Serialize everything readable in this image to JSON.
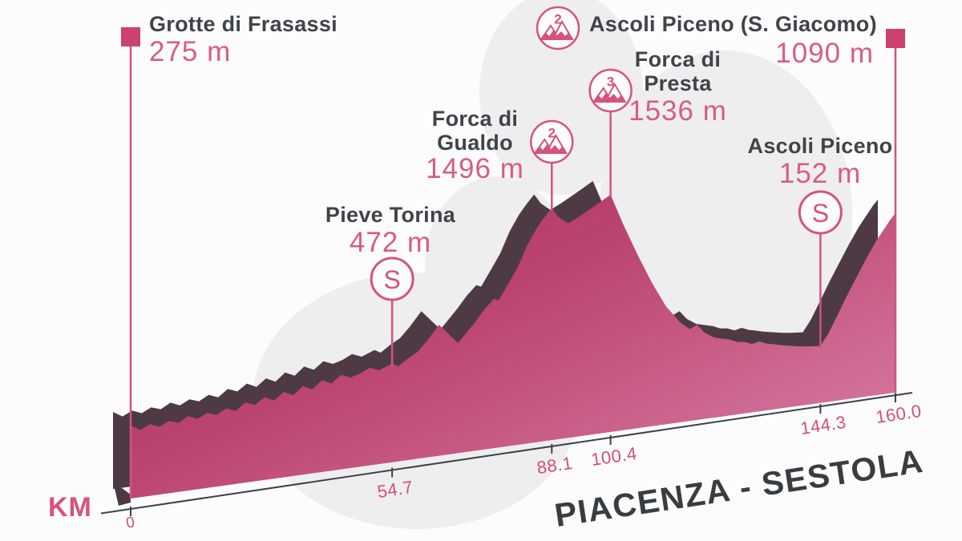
{
  "title": "PIACENZA - SESTOLA",
  "axis": {
    "label": "KM",
    "ticks": [
      {
        "label": "0",
        "km": 0
      },
      {
        "label": "54.7",
        "km": 54.7
      },
      {
        "label": "88.1",
        "km": 88.1
      },
      {
        "label": "100.4",
        "km": 100.4
      },
      {
        "label": "144.3",
        "km": 144.3
      },
      {
        "label": "160.0",
        "km": 160
      }
    ]
  },
  "sprint_symbol": "S",
  "waypoints": [
    {
      "id": "grotte",
      "name": "Grotte di Frasassi",
      "elevation": "275 m",
      "km": 0,
      "type": "start"
    },
    {
      "id": "pieve",
      "name": "Pieve Torina",
      "elevation": "472 m",
      "km": 54.7,
      "type": "sprint"
    },
    {
      "id": "gualdo",
      "name": "Forca di Gualdo",
      "elevation": "1496 m",
      "km": 88.1,
      "type": "climb",
      "category": "2"
    },
    {
      "id": "presta",
      "name": "Forca di Presta",
      "elevation": "1536 m",
      "km": 100.4,
      "type": "climb",
      "category": "3"
    },
    {
      "id": "ascoli",
      "name": "Ascoli Piceno",
      "elevation": "152 m",
      "km": 144.3,
      "type": "sprint"
    },
    {
      "id": "giacomo",
      "name": "Ascoli Piceno (S. Giacomo)",
      "elevation": "1090 m",
      "km": 160,
      "type": "finish",
      "category": "2"
    }
  ],
  "colors": {
    "accent_pink": "#d6537d",
    "elevation_pink": "#d75c85",
    "tick_pink": "#d14f7a",
    "line_pink": "#d4537c",
    "marker_pink": "#cc4170",
    "fill_start": "#a92d59",
    "fill_mid": "#bc4470",
    "fill_end": "#d1719a",
    "ridge_dark": "#4d3a45",
    "text_dark": "#3f444a",
    "axis_dark": "#3c4247",
    "blob_gray": "#efeeef",
    "background": "#fcfcfc"
  },
  "chart_data": {
    "type": "area",
    "title": "PIACENZA - SESTOLA",
    "xlabel": "KM",
    "y_unit": "m",
    "x_range": [
      0,
      160
    ],
    "x_ticks": [
      "0",
      "54.7",
      "88.1",
      "100.4",
      "144.3",
      "160.0"
    ],
    "annotations": [
      {
        "name": "Grotte di Frasassi",
        "km": 0,
        "elevation_m": 275,
        "kind": "start"
      },
      {
        "name": "Pieve Torina",
        "km": 54.7,
        "elevation_m": 472,
        "kind": "sprint"
      },
      {
        "name": "Forca di Gualdo",
        "km": 88.1,
        "elevation_m": 1496,
        "kind": "category-2-climb"
      },
      {
        "name": "Forca di Presta",
        "km": 100.4,
        "elevation_m": 1536,
        "kind": "category-3-climb"
      },
      {
        "name": "Ascoli Piceno",
        "km": 144.3,
        "elevation_m": 152,
        "kind": "sprint"
      },
      {
        "name": "Ascoli Piceno (S. Giacomo)",
        "km": 160,
        "elevation_m": 1090,
        "kind": "finish-category-2-climb"
      }
    ],
    "profile": [
      [
        0,
        275
      ],
      [
        2,
        230
      ],
      [
        4,
        265
      ],
      [
        6,
        235
      ],
      [
        8,
        270
      ],
      [
        10,
        245
      ],
      [
        12,
        285
      ],
      [
        14,
        255
      ],
      [
        16,
        290
      ],
      [
        18,
        265
      ],
      [
        20,
        305
      ],
      [
        22,
        275
      ],
      [
        24,
        330
      ],
      [
        26,
        300
      ],
      [
        28,
        350
      ],
      [
        30,
        315
      ],
      [
        32,
        370
      ],
      [
        34,
        335
      ],
      [
        36,
        395
      ],
      [
        38,
        360
      ],
      [
        40,
        420
      ],
      [
        42,
        385
      ],
      [
        44,
        440
      ],
      [
        46,
        410
      ],
      [
        48,
        430
      ],
      [
        50,
        465
      ],
      [
        52,
        435
      ],
      [
        54.7,
        472
      ],
      [
        56,
        445
      ],
      [
        58,
        495
      ],
      [
        60,
        535
      ],
      [
        62,
        610
      ],
      [
        64.5,
        720
      ],
      [
        66,
        660
      ],
      [
        68.5,
        560
      ],
      [
        70,
        620
      ],
      [
        72,
        700
      ],
      [
        74,
        790
      ],
      [
        76,
        862
      ],
      [
        77,
        845
      ],
      [
        79,
        960
      ],
      [
        81,
        1080
      ],
      [
        83,
        1240
      ],
      [
        85,
        1360
      ],
      [
        86.5,
        1430
      ],
      [
        88.1,
        1496
      ],
      [
        89.5,
        1420
      ],
      [
        91.5,
        1360
      ],
      [
        94,
        1405
      ],
      [
        97,
        1465
      ],
      [
        100.4,
        1536
      ],
      [
        103,
        1300
      ],
      [
        106,
        1050
      ],
      [
        109,
        820
      ],
      [
        112,
        620
      ],
      [
        115,
        480
      ],
      [
        117,
        420
      ],
      [
        118.5,
        445
      ],
      [
        120,
        380
      ],
      [
        122,
        330
      ],
      [
        124,
        310
      ],
      [
        125.5,
        295
      ],
      [
        127,
        270
      ],
      [
        128.5,
        262
      ],
      [
        130,
        240
      ],
      [
        131.5,
        252
      ],
      [
        133,
        228
      ],
      [
        134.5,
        215
      ],
      [
        136,
        200
      ],
      [
        138,
        185
      ],
      [
        140,
        170
      ],
      [
        142,
        160
      ],
      [
        144.3,
        152
      ],
      [
        146,
        240
      ],
      [
        148,
        380
      ],
      [
        150,
        520
      ],
      [
        152,
        650
      ],
      [
        154,
        780
      ],
      [
        156,
        900
      ],
      [
        158,
        1000
      ],
      [
        159,
        1050
      ],
      [
        160,
        1090
      ]
    ]
  }
}
